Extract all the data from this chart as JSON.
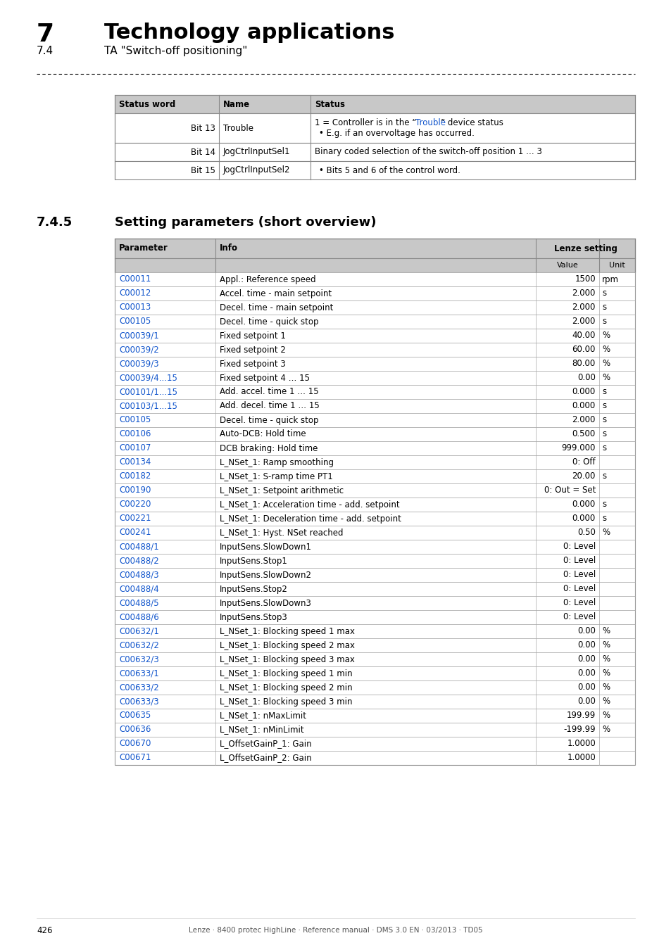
{
  "page_title_number": "7",
  "page_title_text": "Technology applications",
  "page_subtitle_num": "7.4",
  "page_subtitle_text": "TA \"Switch-off positioning\"",
  "section_number": "7.4.5",
  "section_title": "Setting parameters (short overview)",
  "status_table": {
    "headers": [
      "Status word",
      "Name",
      "Status"
    ],
    "rows": [
      [
        "Bit 13",
        "Trouble",
        "1 = Controller is in the “Trouble” device status",
        "• E.g. if an overvoltage has occurred.",
        true
      ],
      [
        "Bit 14",
        "JogCtrlInputSel1",
        "Binary coded selection of the switch-off position 1 … 3",
        "• Bits 5 and 6 of the control word.",
        false
      ],
      [
        "Bit 15",
        "JogCtrlInputSel2",
        "",
        "",
        false
      ]
    ]
  },
  "param_table": {
    "rows": [
      [
        "C00011",
        "Appl.: Reference speed",
        "1500",
        "rpm"
      ],
      [
        "C00012",
        "Accel. time - main setpoint",
        "2.000",
        "s"
      ],
      [
        "C00013",
        "Decel. time - main setpoint",
        "2.000",
        "s"
      ],
      [
        "C00105",
        "Decel. time - quick stop",
        "2.000",
        "s"
      ],
      [
        "C00039/1",
        "Fixed setpoint 1",
        "40.00",
        "%"
      ],
      [
        "C00039/2",
        "Fixed setpoint 2",
        "60.00",
        "%"
      ],
      [
        "C00039/3",
        "Fixed setpoint 3",
        "80.00",
        "%"
      ],
      [
        "C00039/4...15",
        "Fixed setpoint 4 … 15",
        "0.00",
        "%"
      ],
      [
        "C00101/1...15",
        "Add. accel. time 1 … 15",
        "0.000",
        "s"
      ],
      [
        "C00103/1...15",
        "Add. decel. time 1 … 15",
        "0.000",
        "s"
      ],
      [
        "C00105",
        "Decel. time - quick stop",
        "2.000",
        "s"
      ],
      [
        "C00106",
        "Auto-DCB: Hold time",
        "0.500",
        "s"
      ],
      [
        "C00107",
        "DCB braking: Hold time",
        "999.000",
        "s"
      ],
      [
        "C00134",
        "L_NSet_1: Ramp smoothing",
        "0: Off",
        ""
      ],
      [
        "C00182",
        "L_NSet_1: S-ramp time PT1",
        "20.00",
        "s"
      ],
      [
        "C00190",
        "L_NSet_1: Setpoint arithmetic",
        "0: Out = Set",
        ""
      ],
      [
        "C00220",
        "L_NSet_1: Acceleration time - add. setpoint",
        "0.000",
        "s"
      ],
      [
        "C00221",
        "L_NSet_1: Deceleration time - add. setpoint",
        "0.000",
        "s"
      ],
      [
        "C00241",
        "L_NSet_1: Hyst. NSet reached",
        "0.50",
        "%"
      ],
      [
        "C00488/1",
        "InputSens.SlowDown1",
        "0: Level",
        ""
      ],
      [
        "C00488/2",
        "InputSens.Stop1",
        "0: Level",
        ""
      ],
      [
        "C00488/3",
        "InputSens.SlowDown2",
        "0: Level",
        ""
      ],
      [
        "C00488/4",
        "InputSens.Stop2",
        "0: Level",
        ""
      ],
      [
        "C00488/5",
        "InputSens.SlowDown3",
        "0: Level",
        ""
      ],
      [
        "C00488/6",
        "InputSens.Stop3",
        "0: Level",
        ""
      ],
      [
        "C00632/1",
        "L_NSet_1: Blocking speed 1 max",
        "0.00",
        "%"
      ],
      [
        "C00632/2",
        "L_NSet_1: Blocking speed 2 max",
        "0.00",
        "%"
      ],
      [
        "C00632/3",
        "L_NSet_1: Blocking speed 3 max",
        "0.00",
        "%"
      ],
      [
        "C00633/1",
        "L_NSet_1: Blocking speed 1 min",
        "0.00",
        "%"
      ],
      [
        "C00633/2",
        "L_NSet_1: Blocking speed 2 min",
        "0.00",
        "%"
      ],
      [
        "C00633/3",
        "L_NSet_1: Blocking speed 3 min",
        "0.00",
        "%"
      ],
      [
        "C00635",
        "L_NSet_1: nMaxLimit",
        "199.99",
        "%"
      ],
      [
        "C00636",
        "L_NSet_1: nMinLimit",
        "-199.99",
        "%"
      ],
      [
        "C00670",
        "L_OffsetGainP_1: Gain",
        "1.0000",
        ""
      ],
      [
        "C00671",
        "L_OffsetGainP_2: Gain",
        "1.0000",
        ""
      ]
    ]
  },
  "footer_text": "Lenze · 8400 protec HighLine · Reference manual · DMS 3.0 EN · 03/2013 · TD05",
  "page_number": "426",
  "colors": {
    "header_bg": "#c8c8c8",
    "link_color": "#1155cc",
    "border_color": "#888888",
    "row_border": "#aaaaaa"
  }
}
